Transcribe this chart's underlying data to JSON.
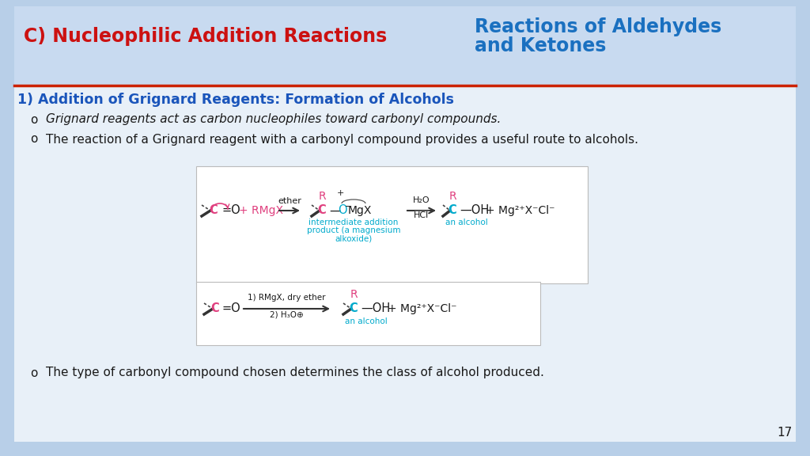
{
  "outer_bg": "#b8cfe8",
  "inner_bg": "#e8f0f8",
  "header_bg": "#c8daf0",
  "content_bg": "#e8f0f8",
  "title_left": "C) Nucleophilic Addition Reactions",
  "title_left_color": "#cc1111",
  "title_right_line1": "Reactions of Aldehydes",
  "title_right_line2": "and Ketones",
  "title_right_color": "#1a70c0",
  "divider_color": "#cc2200",
  "section_title": "1) Addition of Grignard Reagents: Formation of Alcohols",
  "section_title_color": "#1a55bb",
  "bullet1_italic": "Grignard reagents act as carbon nucleophiles toward carbonyl compounds.",
  "bullet2": "The reaction of a Grignard reagent with a carbonyl compound provides a useful route to alcohols.",
  "bullet3": "The type of carbonyl compound chosen determines the class of alcohol produced.",
  "page_number": "17",
  "cyan_color": "#00aacc",
  "pink_color": "#e0407f",
  "dark_text": "#1a1a1a",
  "box_edge": "#bbbbbb",
  "box_fill": "#ffffff"
}
